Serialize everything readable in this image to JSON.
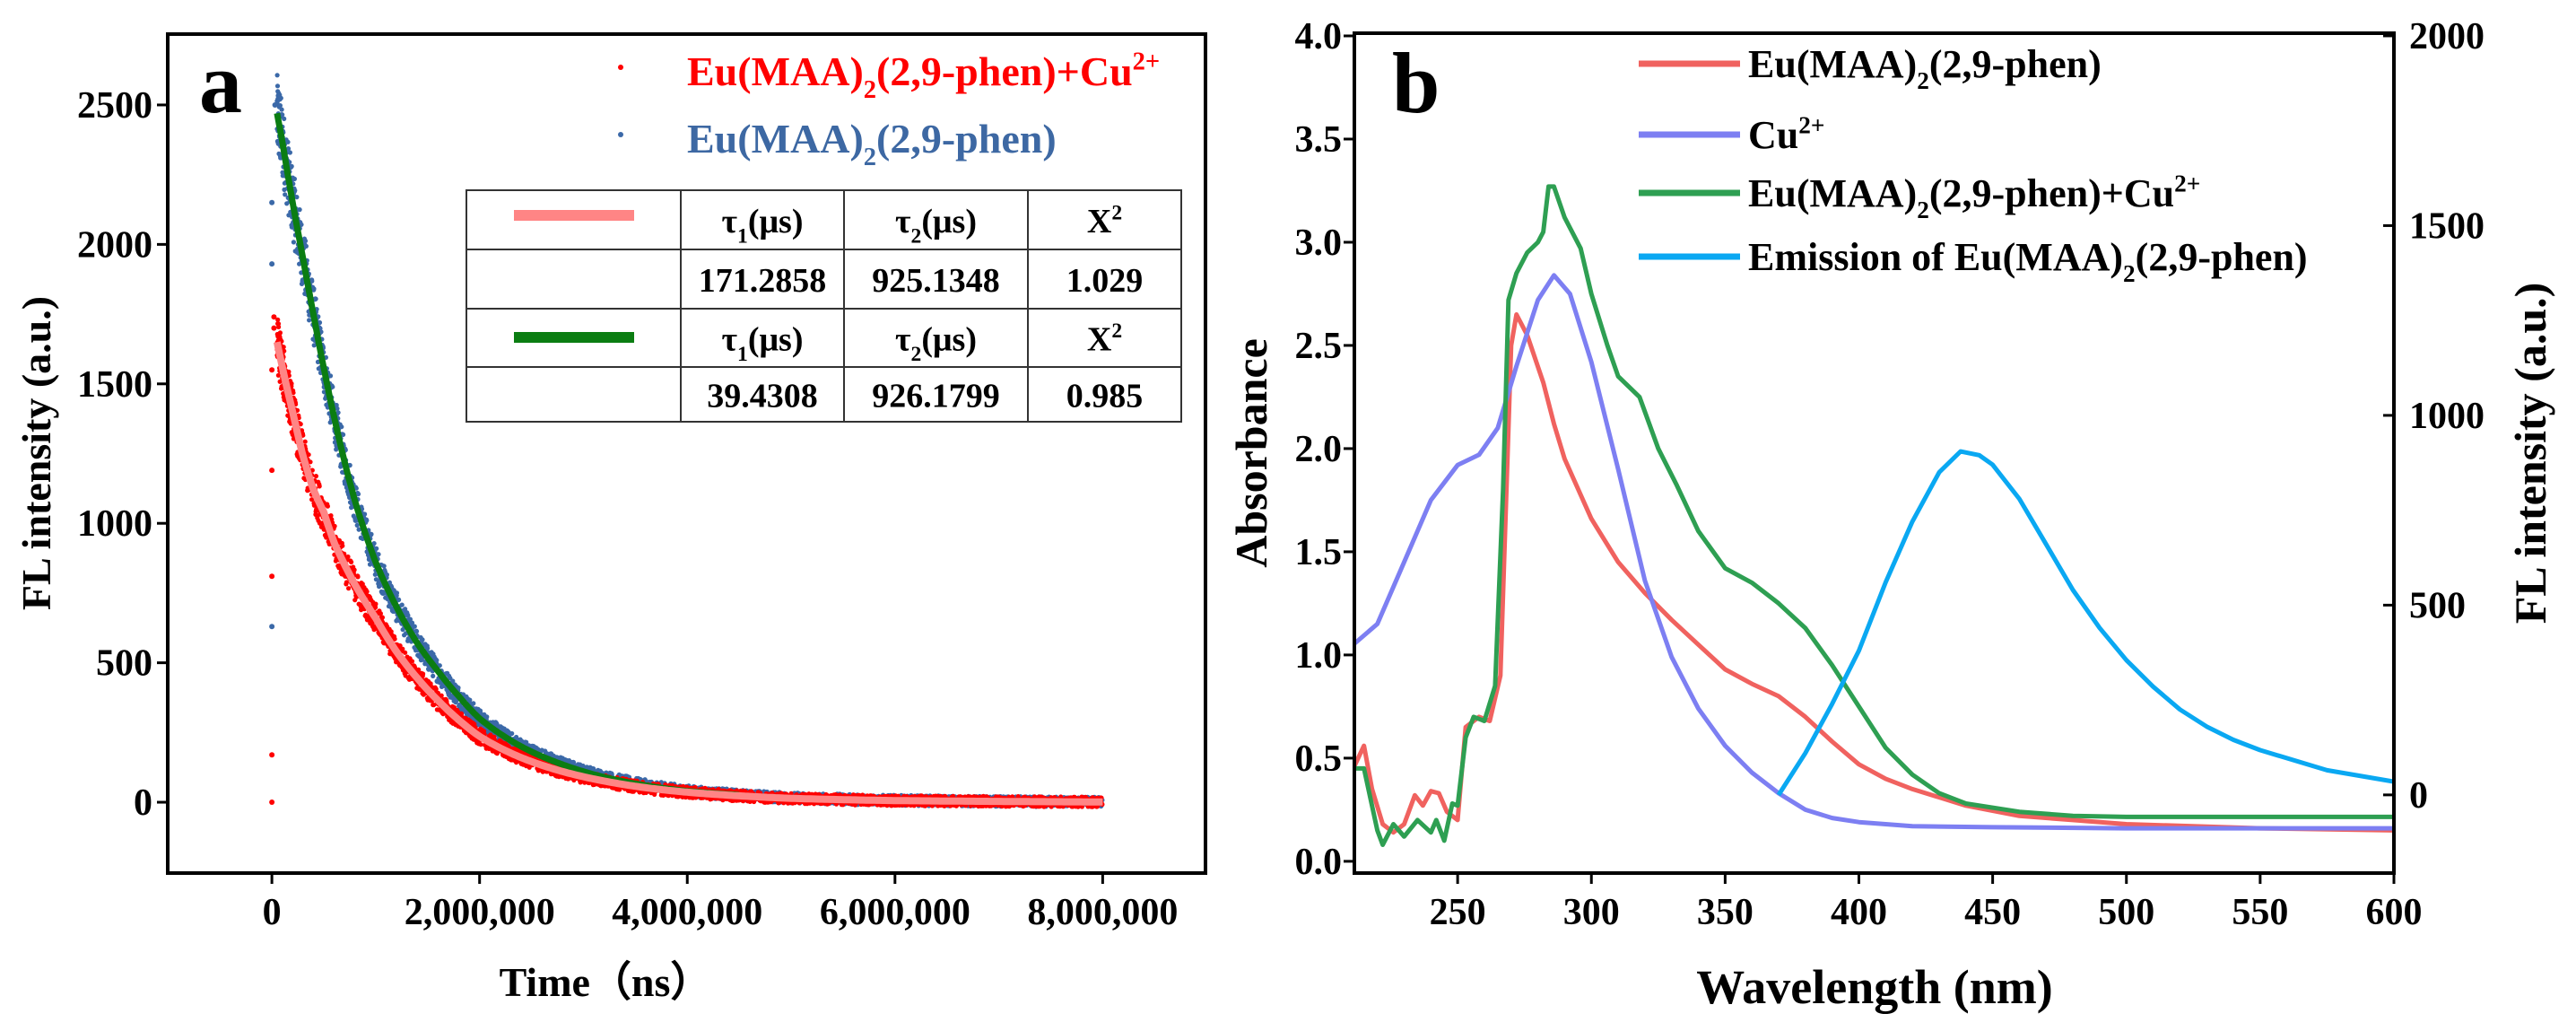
{
  "colors": {
    "red_scatter": "#ff0000",
    "red_fit": "#ff8585",
    "blue_scatter": "#3b69a8",
    "green_fit": "#0b7d12",
    "legend_red_text": "#ff0000",
    "legend_blue_text": "#3d68a3",
    "b_red": "#f0625f",
    "b_blue": "#7d7ff2",
    "b_green": "#2e9f52",
    "b_cyan": "#0aa8f2"
  },
  "chart_data": [
    {
      "panel_label": "a",
      "type": "scatter",
      "xlabel": "Time（ns）",
      "ylabel": "FL intensity (a.u.)",
      "xlim": [
        -1003000,
        8990000
      ],
      "ylim": [
        -254,
        2754
      ],
      "xticks": [
        0,
        2000000,
        4000000,
        6000000,
        8000000
      ],
      "xtick_labels": [
        "0",
        "2,000,000",
        "4,000,000",
        "6,000,000",
        "8,000,000"
      ],
      "yticks": [
        0,
        500,
        1000,
        1500,
        2000,
        2500
      ],
      "ytick_labels": [
        "0",
        "500",
        "1000",
        "1500",
        "2000",
        "2500"
      ],
      "grid": false,
      "legend_position": "top-right",
      "series": [
        {
          "name": "Eu(MAA)2(2,9-phen)+Cu2+",
          "label_parts": [
            [
              "Eu(MAA)",
              ""
            ],
            [
              "2",
              "sub"
            ],
            [
              "(2,9-phen)+Cu",
              ""
            ],
            [
              "2+",
              "sup"
            ]
          ],
          "color_key": "red_scatter",
          "fit_color_key": "red_fit",
          "points": [
            [
              50000,
              1650
            ],
            [
              100000,
              1560
            ],
            [
              200000,
              1400
            ],
            [
              300000,
              1240
            ],
            [
              400000,
              1120
            ],
            [
              500000,
              1040
            ],
            [
              600000,
              930
            ],
            [
              800000,
              780
            ],
            [
              1000000,
              660
            ],
            [
              1200000,
              540
            ],
            [
              1400000,
              445
            ],
            [
              1600000,
              365
            ],
            [
              1800000,
              295
            ],
            [
              2000000,
              236
            ],
            [
              2400000,
              160
            ],
            [
              2800000,
              110
            ],
            [
              3200000,
              76
            ],
            [
              3600000,
              52
            ],
            [
              4000000,
              36
            ],
            [
              4500000,
              23
            ],
            [
              5000000,
              14
            ],
            [
              6000000,
              6
            ],
            [
              7000000,
              3
            ],
            [
              8000000,
              1
            ]
          ],
          "outliers": [
            [
              0,
              0
            ],
            [
              0,
              170
            ],
            [
              0,
              810
            ],
            [
              0,
              1190
            ],
            [
              0,
              1550
            ],
            [
              20000,
              1740
            ],
            [
              20000,
              1700
            ]
          ],
          "fit_end": 8000000
        },
        {
          "name": "Eu(MAA)2(2,9-phen)",
          "label_parts": [
            [
              "Eu(MAA)",
              ""
            ],
            [
              "2",
              "sub"
            ],
            [
              "(2,9-phen)",
              ""
            ]
          ],
          "color_key": "blue_scatter",
          "fit_color_key": "green_fit",
          "points": [
            [
              50000,
              2470
            ],
            [
              100000,
              2370
            ],
            [
              200000,
              2150
            ],
            [
              300000,
              1950
            ],
            [
              400000,
              1750
            ],
            [
              500000,
              1557
            ],
            [
              600000,
              1380
            ],
            [
              800000,
              1080
            ],
            [
              1000000,
              860
            ],
            [
              1200000,
              700
            ],
            [
              1400000,
              570
            ],
            [
              1600000,
              470
            ],
            [
              1800000,
              380
            ],
            [
              2000000,
              300
            ],
            [
              2400000,
              200
            ],
            [
              2800000,
              135
            ],
            [
              3200000,
              90
            ],
            [
              3600000,
              60
            ],
            [
              4000000,
              40
            ],
            [
              4500000,
              26
            ],
            [
              5000000,
              16
            ],
            [
              6000000,
              7
            ],
            [
              7000000,
              3
            ],
            [
              8000000,
              1
            ]
          ],
          "outliers": [
            [
              0,
              630
            ],
            [
              0,
              1930
            ],
            [
              0,
              2150
            ],
            [
              30000,
              2500
            ]
          ],
          "fit_end": 4500000
        }
      ],
      "fit_table": {
        "header_1": [
          [
            [
              "τ",
              ""
            ],
            [
              "1",
              "sub"
            ],
            [
              "(μs)",
              ""
            ]
          ],
          [
            [
              "τ",
              ""
            ],
            [
              "2",
              "sub"
            ],
            [
              "(μs)",
              ""
            ]
          ],
          [
            [
              "X",
              ""
            ],
            [
              "2",
              "sup"
            ]
          ]
        ],
        "row_1": [
          "171.2858",
          "925.1348",
          "1.029"
        ],
        "header_2": [
          [
            [
              "τ",
              ""
            ],
            [
              "1",
              "sub"
            ],
            [
              "(μs)",
              ""
            ]
          ],
          [
            [
              "τ",
              ""
            ],
            [
              "2",
              "sub"
            ],
            [
              "(μs)",
              ""
            ]
          ],
          [
            [
              "X",
              ""
            ],
            [
              "2",
              "sup"
            ]
          ]
        ],
        "row_2": [
          "39.4308",
          "926.1799",
          "0.985"
        ]
      }
    },
    {
      "panel_label": "b",
      "type": "line",
      "xlabel": "Wavelength (nm)",
      "ylabel": "Absorbance",
      "y2label": "FL intensity (a.u.)",
      "xlim": [
        211.4,
        600
      ],
      "ylim": [
        -0.057,
        4.013
      ],
      "y2lim": [
        -206,
        2007
      ],
      "xticks": [
        250,
        300,
        350,
        400,
        450,
        500,
        550,
        600
      ],
      "xtick_labels": [
        "250",
        "300",
        "350",
        "400",
        "450",
        "500",
        "550",
        "600"
      ],
      "yticks": [
        0,
        0.5,
        1,
        1.5,
        2,
        2.5,
        3,
        3.5,
        4
      ],
      "ytick_labels": [
        "0.0",
        "0.5",
        "1.0",
        "1.5",
        "2.0",
        "2.5",
        "3.0",
        "3.5",
        "4.0"
      ],
      "y2ticks": [
        0,
        500,
        1000,
        1500,
        2000
      ],
      "y2tick_labels": [
        "0",
        "500",
        "1000",
        "1500",
        "2000"
      ],
      "grid": false,
      "legend_position": "top-right",
      "series": [
        {
          "name": "Eu(MAA)2(2,9-phen)",
          "label_parts": [
            [
              "Eu(MAA)",
              ""
            ],
            [
              "2",
              "sub"
            ],
            [
              "(2,9-phen)",
              ""
            ]
          ],
          "color_key": "b_red",
          "axis": "left",
          "x": [
            211,
            215,
            218,
            222,
            226,
            230,
            234,
            237,
            240,
            243,
            246,
            250,
            253,
            258,
            262,
            266,
            268,
            270,
            272,
            276,
            282,
            286,
            290,
            300,
            310,
            320,
            330,
            340,
            350,
            360,
            370,
            380,
            390,
            400,
            410,
            420,
            440,
            460,
            480,
            500,
            550,
            600
          ],
          "y": [
            0.45,
            0.56,
            0.35,
            0.18,
            0.14,
            0.18,
            0.32,
            0.27,
            0.34,
            0.33,
            0.24,
            0.2,
            0.65,
            0.7,
            0.68,
            0.9,
            1.7,
            2.5,
            2.65,
            2.55,
            2.32,
            2.12,
            1.95,
            1.66,
            1.45,
            1.3,
            1.17,
            1.05,
            0.93,
            0.86,
            0.8,
            0.7,
            0.58,
            0.47,
            0.4,
            0.35,
            0.27,
            0.22,
            0.2,
            0.18,
            0.16,
            0.15
          ]
        },
        {
          "name": "Cu2+",
          "label_parts": [
            [
              "Cu",
              ""
            ],
            [
              "2+",
              "sup"
            ]
          ],
          "color_key": "b_blue",
          "axis": "left",
          "x": [
            211,
            220,
            230,
            240,
            250,
            258,
            265,
            272,
            280,
            286,
            292,
            300,
            310,
            320,
            330,
            340,
            350,
            360,
            370,
            380,
            390,
            400,
            420,
            450,
            500,
            600
          ],
          "y": [
            1.05,
            1.15,
            1.45,
            1.75,
            1.92,
            1.97,
            2.1,
            2.4,
            2.72,
            2.84,
            2.75,
            2.42,
            1.9,
            1.36,
            0.99,
            0.74,
            0.56,
            0.43,
            0.33,
            0.25,
            0.21,
            0.19,
            0.17,
            0.165,
            0.16,
            0.16
          ]
        },
        {
          "name": "Eu(MAA)2(2,9-phen)+Cu2+",
          "label_parts": [
            [
              "Eu(MAA)",
              ""
            ],
            [
              "2",
              "sub"
            ],
            [
              "(2,9-phen)+Cu",
              ""
            ],
            [
              "2+",
              "sup"
            ]
          ],
          "color_key": "b_green",
          "axis": "left",
          "x": [
            211,
            215,
            220,
            222,
            226,
            230,
            235,
            240,
            242,
            245,
            248,
            250,
            253,
            256,
            260,
            264,
            267,
            269,
            272,
            276,
            280,
            282,
            284,
            286,
            290,
            296,
            300,
            306,
            310,
            318,
            325,
            332,
            340,
            350,
            360,
            370,
            380,
            390,
            400,
            410,
            420,
            430,
            440,
            460,
            480,
            500,
            600
          ],
          "y": [
            0.45,
            0.45,
            0.15,
            0.08,
            0.18,
            0.12,
            0.2,
            0.14,
            0.2,
            0.1,
            0.28,
            0.27,
            0.6,
            0.7,
            0.68,
            0.85,
            1.8,
            2.72,
            2.85,
            2.95,
            3.0,
            3.05,
            3.27,
            3.27,
            3.12,
            2.97,
            2.75,
            2.5,
            2.35,
            2.25,
            2.0,
            1.82,
            1.6,
            1.42,
            1.35,
            1.25,
            1.13,
            0.95,
            0.75,
            0.55,
            0.42,
            0.33,
            0.28,
            0.24,
            0.22,
            0.215,
            0.215
          ]
        },
        {
          "name": "Emission of Eu(MAA)2(2,9-phen)",
          "label_parts": [
            [
              "Emission of Eu(MAA)",
              ""
            ],
            [
              "2",
              "sub"
            ],
            [
              "(2,9-phen)",
              ""
            ]
          ],
          "color_key": "b_cyan",
          "axis": "right",
          "x": [
            370,
            380,
            390,
            400,
            410,
            420,
            430,
            438,
            445,
            450,
            460,
            470,
            480,
            490,
            500,
            510,
            520,
            530,
            540,
            550,
            575,
            600
          ],
          "y": [
            0,
            110,
            240,
            380,
            560,
            720,
            850,
            905,
            895,
            870,
            780,
            660,
            540,
            440,
            355,
            285,
            225,
            180,
            145,
            118,
            65,
            35
          ]
        }
      ]
    }
  ]
}
